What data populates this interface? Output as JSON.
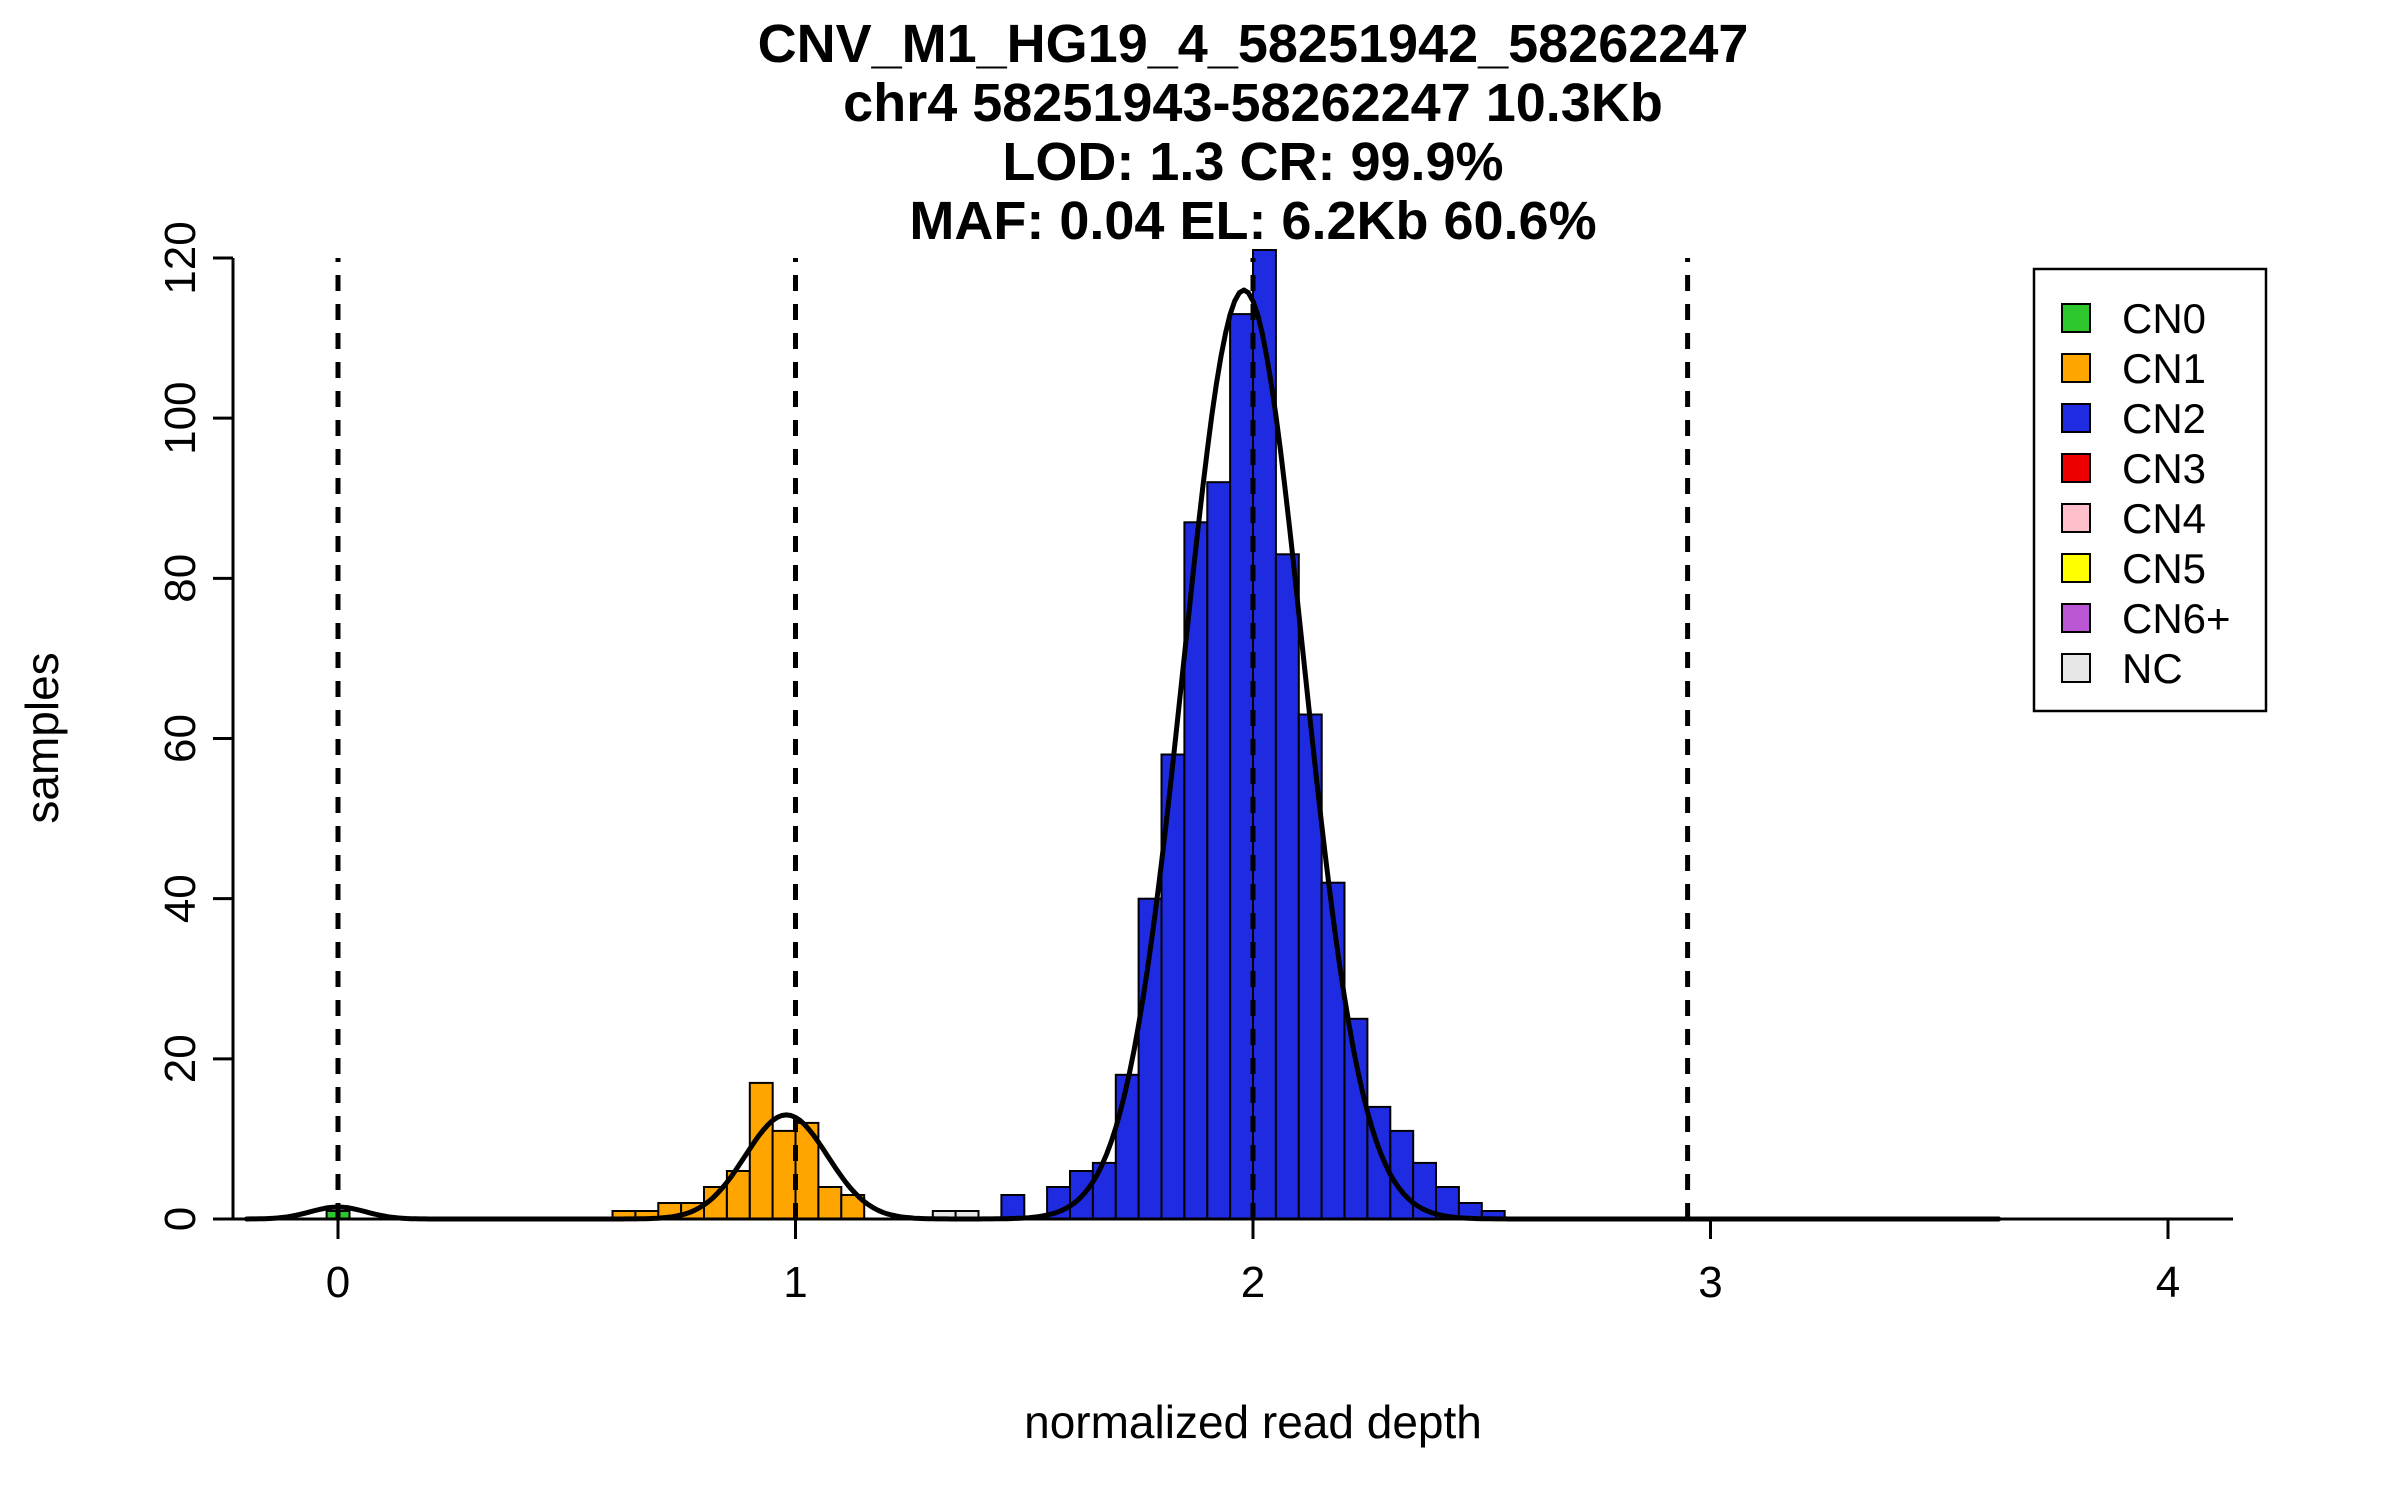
{
  "title": {
    "line1": "CNV_M1_HG19_4_58251942_58262247",
    "line2": "chr4 58251943-58262247 10.3Kb",
    "line3": "LOD: 1.3 CR: 99.9%",
    "line4": "MAF: 0.04 EL: 6.2Kb 60.6%"
  },
  "chart_data": {
    "type": "bar",
    "subtype": "histogram-with-density-curves",
    "xlabel": "normalized read depth",
    "ylabel": "samples",
    "xlim": [
      -0.23,
      4.15
    ],
    "ylim": [
      0,
      120
    ],
    "x_ticks": [
      0,
      1,
      2,
      3,
      4
    ],
    "y_ticks": [
      0,
      20,
      40,
      60,
      80,
      100,
      120
    ],
    "grid": false,
    "legend_position": "top-right",
    "dashed_lines_x": [
      0,
      1,
      2,
      2.95
    ],
    "bin_width": 0.05,
    "bars": [
      {
        "x": -0.025,
        "count": 1,
        "cn": "CN0"
      },
      {
        "x": 0.6,
        "count": 1,
        "cn": "CN1"
      },
      {
        "x": 0.65,
        "count": 1,
        "cn": "CN1"
      },
      {
        "x": 0.7,
        "count": 2,
        "cn": "CN1"
      },
      {
        "x": 0.75,
        "count": 2,
        "cn": "CN1"
      },
      {
        "x": 0.8,
        "count": 4,
        "cn": "CN1"
      },
      {
        "x": 0.85,
        "count": 6,
        "cn": "CN1"
      },
      {
        "x": 0.9,
        "count": 17,
        "cn": "CN1"
      },
      {
        "x": 0.95,
        "count": 11,
        "cn": "CN1"
      },
      {
        "x": 1.0,
        "count": 12,
        "cn": "CN1"
      },
      {
        "x": 1.05,
        "count": 4,
        "cn": "CN1"
      },
      {
        "x": 1.1,
        "count": 3,
        "cn": "CN1"
      },
      {
        "x": 1.3,
        "count": 1,
        "cn": "NC"
      },
      {
        "x": 1.35,
        "count": 1,
        "cn": "NC"
      },
      {
        "x": 1.45,
        "count": 3,
        "cn": "CN2"
      },
      {
        "x": 1.55,
        "count": 4,
        "cn": "CN2"
      },
      {
        "x": 1.6,
        "count": 6,
        "cn": "CN2"
      },
      {
        "x": 1.65,
        "count": 7,
        "cn": "CN2"
      },
      {
        "x": 1.7,
        "count": 18,
        "cn": "CN2"
      },
      {
        "x": 1.75,
        "count": 40,
        "cn": "CN2"
      },
      {
        "x": 1.8,
        "count": 58,
        "cn": "CN2"
      },
      {
        "x": 1.85,
        "count": 87,
        "cn": "CN2"
      },
      {
        "x": 1.9,
        "count": 92,
        "cn": "CN2"
      },
      {
        "x": 1.95,
        "count": 113,
        "cn": "CN2"
      },
      {
        "x": 2.0,
        "count": 121,
        "cn": "CN2"
      },
      {
        "x": 2.05,
        "count": 83,
        "cn": "CN2"
      },
      {
        "x": 2.1,
        "count": 63,
        "cn": "CN2"
      },
      {
        "x": 2.15,
        "count": 42,
        "cn": "CN2"
      },
      {
        "x": 2.2,
        "count": 25,
        "cn": "CN2"
      },
      {
        "x": 2.25,
        "count": 14,
        "cn": "CN2"
      },
      {
        "x": 2.3,
        "count": 11,
        "cn": "CN2"
      },
      {
        "x": 2.35,
        "count": 7,
        "cn": "CN2"
      },
      {
        "x": 2.4,
        "count": 4,
        "cn": "CN2"
      },
      {
        "x": 2.45,
        "count": 2,
        "cn": "CN2"
      },
      {
        "x": 2.5,
        "count": 1,
        "cn": "CN2"
      }
    ],
    "curves": [
      {
        "mean": 0.0,
        "sd": 0.06,
        "amplitude": 1.5
      },
      {
        "mean": 0.98,
        "sd": 0.09,
        "amplitude": 13
      },
      {
        "mean": 1.98,
        "sd": 0.13,
        "amplitude": 116
      }
    ],
    "curve_range": [
      -0.2,
      3.63
    ],
    "curve_color": "#000000",
    "legend": [
      {
        "label": "CN0",
        "color": "#2DC72D"
      },
      {
        "label": "CN1",
        "color": "#FFA500"
      },
      {
        "label": "CN2",
        "color": "#1F2BE0"
      },
      {
        "label": "CN3",
        "color": "#EE0000"
      },
      {
        "label": "CN4",
        "color": "#FFC0CB"
      },
      {
        "label": "CN5",
        "color": "#FFFF00"
      },
      {
        "label": "CN6+",
        "color": "#BA55D3"
      },
      {
        "label": "NC",
        "color": "#E6E6E6"
      }
    ]
  }
}
